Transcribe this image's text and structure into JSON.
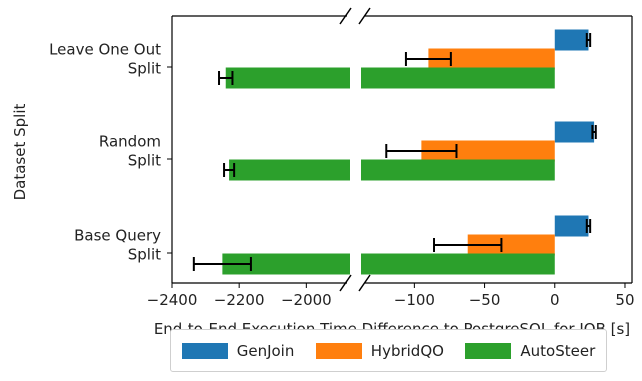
{
  "chart_data": {
    "type": "bar",
    "orientation": "horizontal",
    "broken_x_axis": true,
    "ylabel": "Dataset Split",
    "xlabel": "End-to-End Execution Time Difference to PostgreSQL for JOB [s]",
    "categories": [
      [
        "Leave One Out",
        "Split"
      ],
      [
        "Random",
        "Split"
      ],
      [
        "Base Query",
        "Split"
      ]
    ],
    "x_segments": [
      {
        "xlim": [
          -2400,
          -1870
        ],
        "ticks": [
          -2400,
          -2200,
          -2000
        ],
        "tick_labels": [
          "−2400",
          "−2200",
          "−2000"
        ]
      },
      {
        "xlim": [
          -138,
          55
        ],
        "ticks": [
          -100,
          -50,
          0,
          50
        ],
        "tick_labels": [
          "−100",
          "−50",
          "0",
          "50"
        ]
      }
    ],
    "series": [
      {
        "name": "GenJoin",
        "color": "#1f77b4",
        "values": [
          24,
          28,
          24
        ],
        "errors": [
          1.2,
          1.2,
          1.2
        ]
      },
      {
        "name": "HybridQO",
        "color": "#ff7f0e",
        "values": [
          -90,
          -95,
          -62
        ],
        "errors": [
          16,
          25,
          24
        ]
      },
      {
        "name": "AutoSteer",
        "color": "#2ca02c",
        "values": [
          -2240,
          -2230,
          -2250
        ],
        "errors": [
          20,
          15,
          85
        ]
      }
    ],
    "legend": {
      "placement": "bottom-center",
      "entries": [
        "GenJoin",
        "HybridQO",
        "AutoSteer"
      ]
    },
    "grid": false
  }
}
